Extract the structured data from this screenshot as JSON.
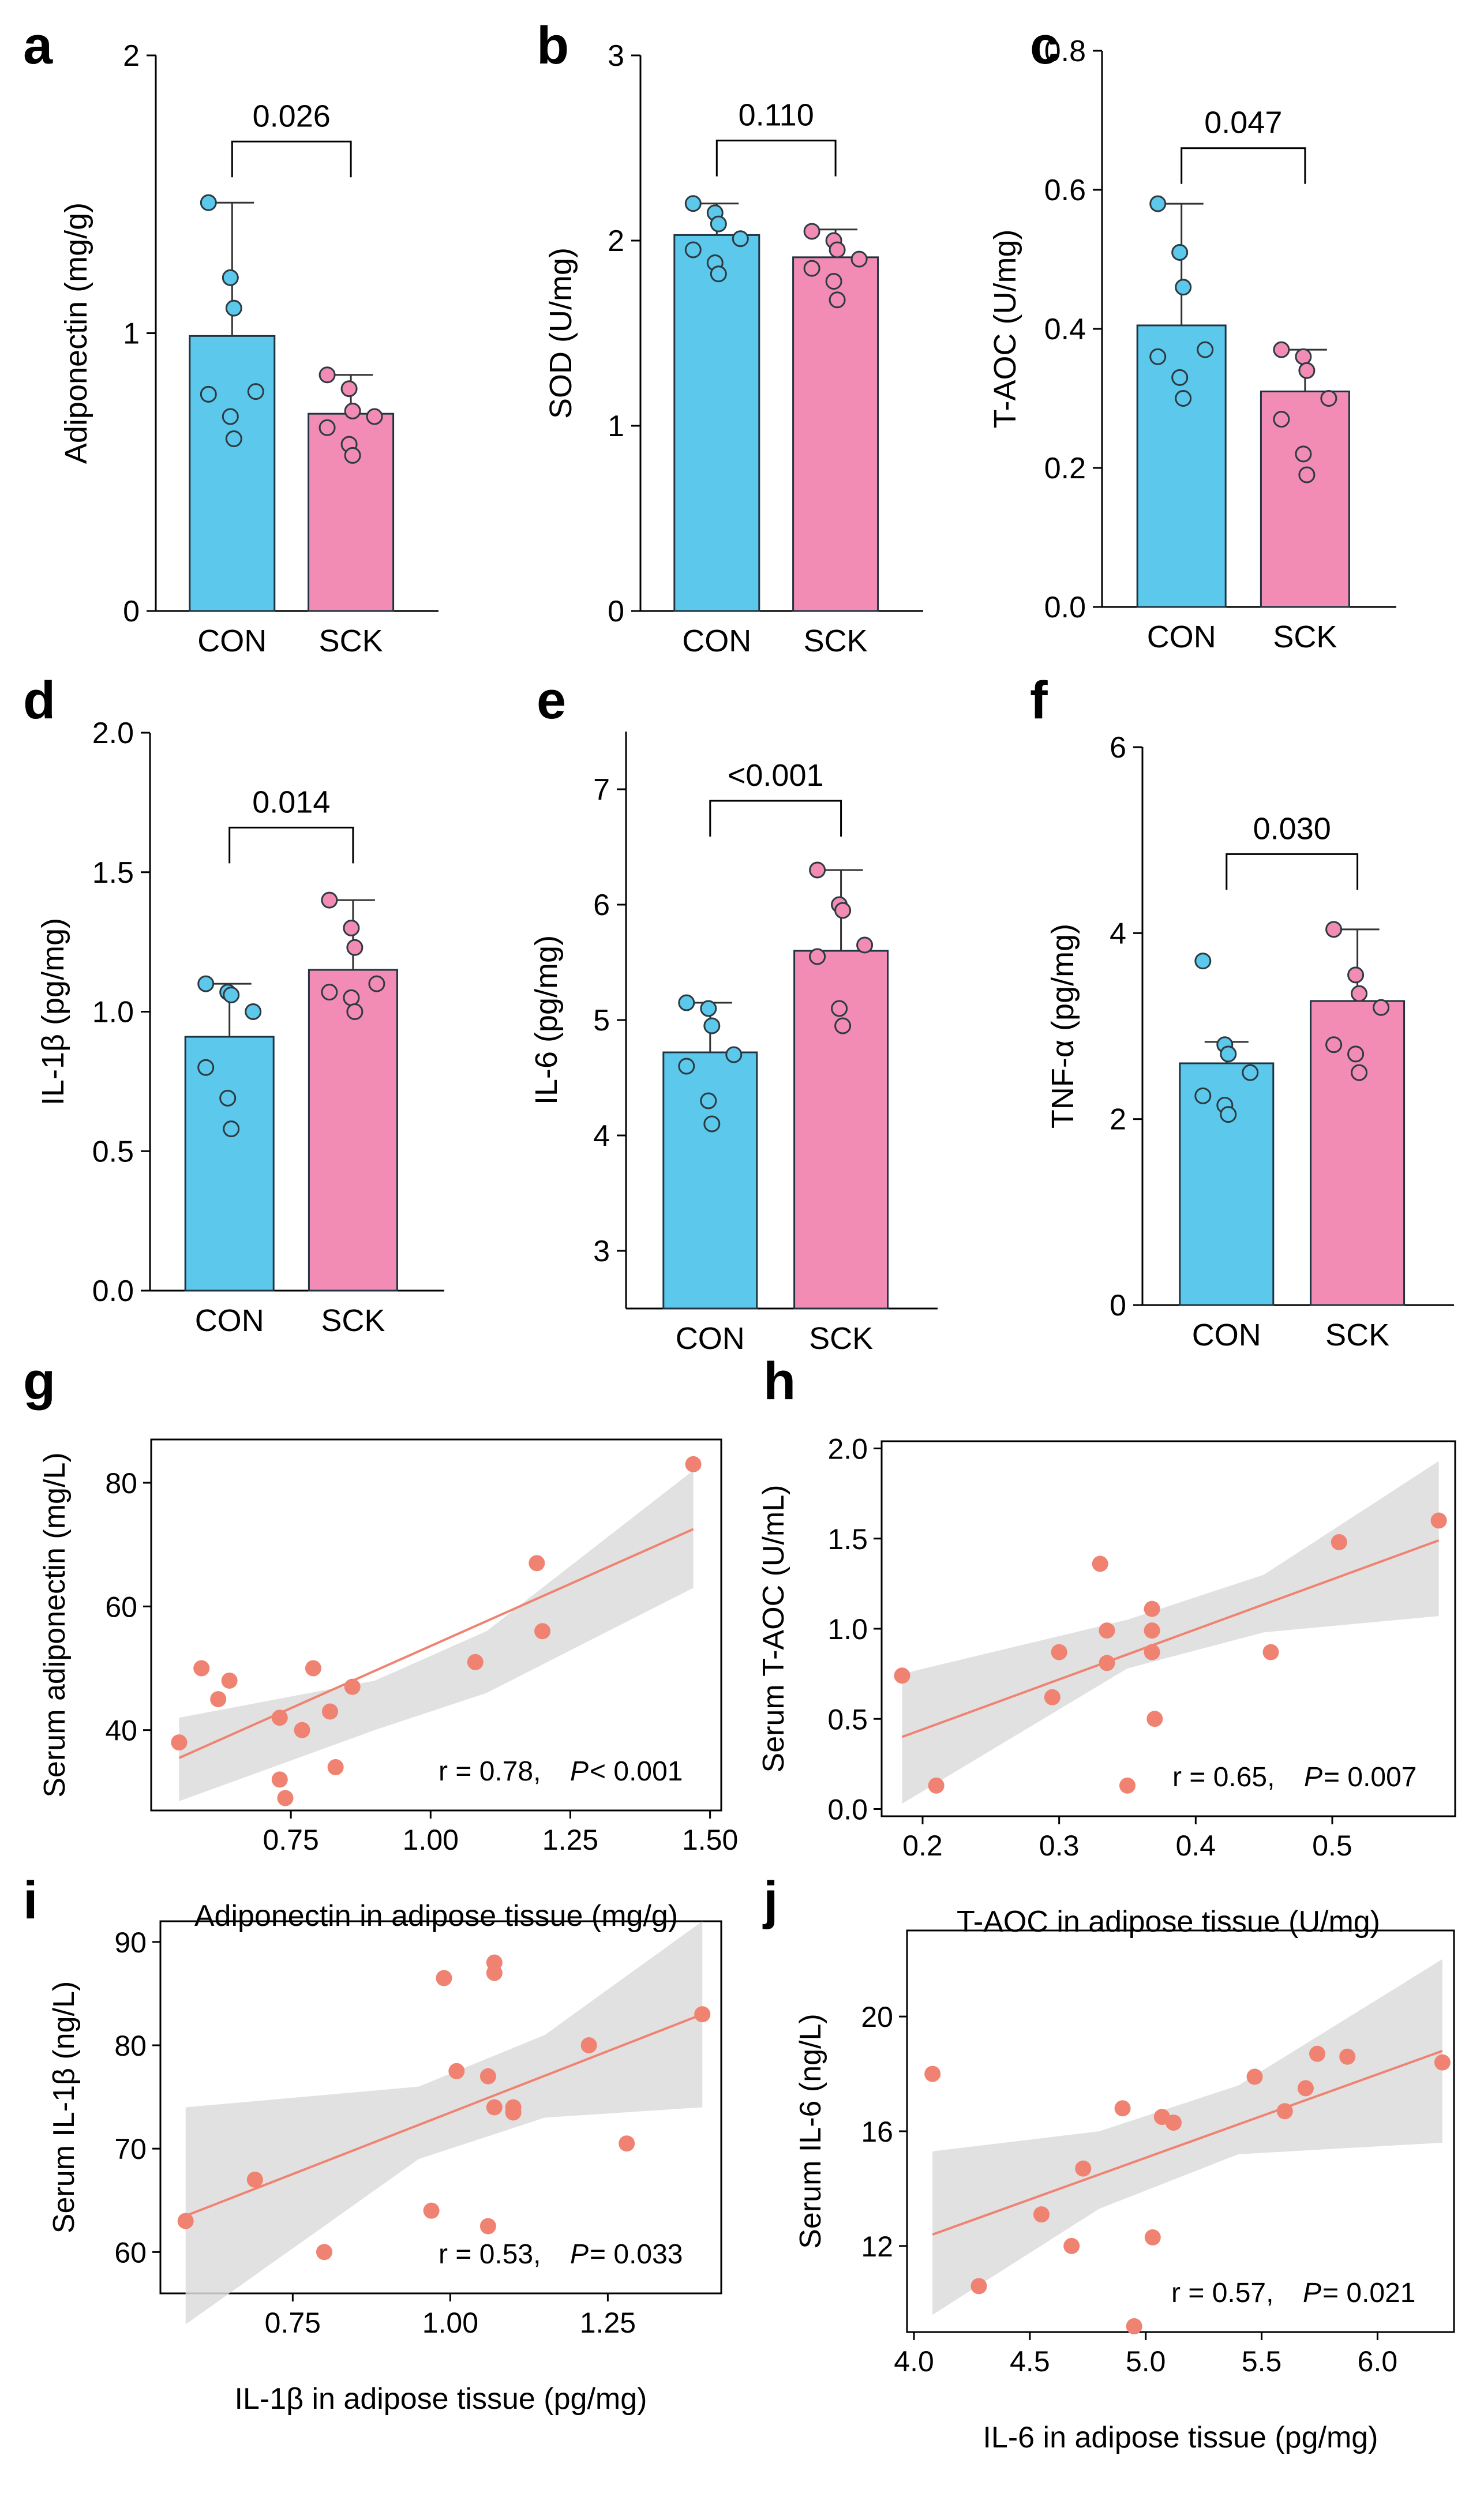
{
  "figure": {
    "description_colors": {
      "con": "#5bc8ec",
      "sck": "#f28cb4",
      "dot": "#f08272",
      "line": "#f08272",
      "band": "#dcdcdc",
      "axis": "#000000"
    }
  },
  "chart_data": [
    {
      "id": "a",
      "panel_label": "a",
      "type": "bar",
      "ylabel": "Adiponectin (mg/g)",
      "ylim": [
        0,
        2
      ],
      "yticks": [
        0,
        1,
        2
      ],
      "ytick_labels": [
        "0",
        "1",
        "2"
      ],
      "categories": [
        "CON",
        "SCK"
      ],
      "means": [
        0.99,
        0.71
      ],
      "errors": [
        1.47,
        0.85
      ],
      "points": [
        [
          1.47,
          1.2,
          1.09,
          0.79,
          0.78,
          0.7,
          0.62
        ],
        [
          0.85,
          0.8,
          0.72,
          0.7,
          0.66,
          0.6,
          0.56
        ]
      ],
      "p_label": "0.026",
      "bracket_y": 1.69
    },
    {
      "id": "b",
      "panel_label": "b",
      "type": "bar",
      "ylabel": "SOD (U/mg)",
      "ylim": [
        0,
        3
      ],
      "yticks": [
        0,
        1,
        2,
        3
      ],
      "ytick_labels": [
        "0",
        "1",
        "2",
        "3"
      ],
      "categories": [
        "CON",
        "SCK"
      ],
      "means": [
        2.03,
        1.91
      ],
      "errors": [
        2.2,
        2.06
      ],
      "points": [
        [
          2.2,
          2.15,
          2.09,
          2.01,
          1.95,
          1.88,
          1.82
        ],
        [
          2.05,
          2.0,
          1.95,
          1.9,
          1.85,
          1.78,
          1.68
        ]
      ],
      "p_label": "0.110",
      "bracket_y": 2.54
    },
    {
      "id": "c",
      "panel_label": "c",
      "type": "bar",
      "ylabel": "T-AOC (U/mg)",
      "ylim": [
        0,
        0.8
      ],
      "yticks": [
        0,
        0.2,
        0.4,
        0.6,
        0.8
      ],
      "ytick_labels": [
        "0.0",
        "0.2",
        "0.4",
        "0.6",
        "0.8"
      ],
      "categories": [
        "CON",
        "SCK"
      ],
      "means": [
        0.405,
        0.31
      ],
      "errors": [
        0.58,
        0.37
      ],
      "points": [
        [
          0.58,
          0.51,
          0.46,
          0.37,
          0.36,
          0.33,
          0.3
        ],
        [
          0.37,
          0.36,
          0.34,
          0.3,
          0.27,
          0.22,
          0.19
        ]
      ],
      "p_label": "0.047",
      "bracket_y": 0.66
    },
    {
      "id": "d",
      "panel_label": "d",
      "type": "bar",
      "ylabel": "IL-1β (pg/mg)",
      "ylim": [
        0,
        2.0
      ],
      "yticks": [
        0,
        0.5,
        1.0,
        1.5,
        2.0
      ],
      "ytick_labels": [
        "0.0",
        "0.5",
        "1.0",
        "1.5",
        "2.0"
      ],
      "categories": [
        "CON",
        "SCK"
      ],
      "means": [
        0.91,
        1.15
      ],
      "errors": [
        1.1,
        1.4
      ],
      "points": [
        [
          1.1,
          1.07,
          1.06,
          1.0,
          0.8,
          0.69,
          0.58
        ],
        [
          1.4,
          1.3,
          1.23,
          1.1,
          1.07,
          1.05,
          1.0
        ]
      ],
      "p_label": "0.014",
      "bracket_y": 1.66
    },
    {
      "id": "e",
      "panel_label": "e",
      "type": "bar",
      "ylabel": "IL-6 (pg/mg)",
      "ylim": [
        2.5,
        7.5
      ],
      "ybase": 2.5,
      "yticks": [
        3,
        4,
        5,
        6,
        7
      ],
      "ytick_labels": [
        "3",
        "4",
        "5",
        "6",
        "7"
      ],
      "categories": [
        "CON",
        "SCK"
      ],
      "means": [
        4.72,
        5.6
      ],
      "errors": [
        5.15,
        6.3
      ],
      "points": [
        [
          5.15,
          5.1,
          4.95,
          4.7,
          4.6,
          4.3,
          4.1
        ],
        [
          6.3,
          6.0,
          5.95,
          5.65,
          5.55,
          5.1,
          4.95
        ]
      ],
      "p_label": "<0.001",
      "bracket_y": 6.9
    },
    {
      "id": "f",
      "panel_label": "f",
      "type": "bar",
      "ylabel": "TNF-α (pg/mg)",
      "ylim": [
        0,
        6
      ],
      "yticks": [
        0,
        2,
        4,
        6
      ],
      "ytick_labels": [
        "0",
        "2",
        "4",
        "6"
      ],
      "categories": [
        "CON",
        "SCK"
      ],
      "means": [
        2.6,
        3.27
      ],
      "errors": [
        2.83,
        4.04
      ],
      "points": [
        [
          3.7,
          2.8,
          2.7,
          2.5,
          2.25,
          2.15,
          2.05
        ],
        [
          4.04,
          3.55,
          3.35,
          3.2,
          2.8,
          2.7,
          2.5
        ]
      ],
      "p_label": "0.030",
      "bracket_y": 4.85
    },
    {
      "id": "g",
      "panel_label": "g",
      "type": "scatter",
      "xlabel": "Adiponectin in adipose tissue (mg/g)",
      "ylabel": "Serum adiponectin (mg/L)",
      "xlim": [
        0.5,
        1.52
      ],
      "ylim": [
        27,
        87
      ],
      "xticks": [
        0.75,
        1.0,
        1.25,
        1.5
      ],
      "xtick_labels": [
        "0.75",
        "1.00",
        "1.25",
        "1.50"
      ],
      "yticks": [
        40,
        60,
        80
      ],
      "ytick_labels": [
        "40",
        "60",
        "80"
      ],
      "x": [
        0.55,
        0.59,
        0.62,
        0.64,
        0.73,
        0.73,
        0.74,
        0.77,
        0.79,
        0.82,
        0.83,
        0.86,
        1.08,
        1.19,
        1.2,
        1.47
      ],
      "y": [
        38,
        50,
        45,
        48,
        42,
        32,
        29,
        40,
        50,
        43,
        34,
        47,
        51,
        67,
        56,
        83
      ],
      "fit": [
        [
          0.55,
          35.5
        ],
        [
          1.47,
          72.5
        ]
      ],
      "band_upper": [
        [
          0.55,
          42
        ],
        [
          0.9,
          48
        ],
        [
          1.1,
          56
        ],
        [
          1.47,
          82
        ]
      ],
      "band_lower": [
        [
          0.55,
          28.5
        ],
        [
          0.9,
          40
        ],
        [
          1.1,
          46
        ],
        [
          1.47,
          63
        ]
      ],
      "r_text": "r = 0.78,",
      "p_prefix": "P",
      "p_text": " < 0.001"
    },
    {
      "id": "h",
      "panel_label": "h",
      "type": "scatter",
      "xlabel": "T-AOC in adipose tissue (U/mg)",
      "ylabel": "Serum T-AOC (U/mL)",
      "xlim": [
        0.17,
        0.59
      ],
      "ylim": [
        -0.04,
        2.04
      ],
      "xticks": [
        0.2,
        0.3,
        0.4,
        0.5
      ],
      "xtick_labels": [
        "0.2",
        "0.3",
        "0.4",
        "0.5"
      ],
      "yticks": [
        0,
        0.5,
        1.0,
        1.5,
        2.0
      ],
      "ytick_labels": [
        "0.0",
        "0.5",
        "1.0",
        "1.5",
        "2.0"
      ],
      "x": [
        0.185,
        0.21,
        0.295,
        0.3,
        0.33,
        0.335,
        0.335,
        0.35,
        0.368,
        0.368,
        0.368,
        0.37,
        0.455,
        0.505,
        0.578
      ],
      "y": [
        0.74,
        0.13,
        0.62,
        0.87,
        1.36,
        0.99,
        0.81,
        0.13,
        1.11,
        0.99,
        0.87,
        0.5,
        0.87,
        1.48,
        1.6
      ],
      "fit": [
        [
          0.185,
          0.4
        ],
        [
          0.578,
          1.49
        ]
      ],
      "band_upper": [
        [
          0.185,
          0.75
        ],
        [
          0.35,
          1.05
        ],
        [
          0.45,
          1.3
        ],
        [
          0.578,
          1.93
        ]
      ],
      "band_lower": [
        [
          0.185,
          0.03
        ],
        [
          0.35,
          0.78
        ],
        [
          0.45,
          0.98
        ],
        [
          0.578,
          1.07
        ]
      ],
      "r_text": "r = 0.65,",
      "p_prefix": "P",
      "p_text": " = 0.007"
    },
    {
      "id": "i",
      "panel_label": "i",
      "type": "scatter",
      "xlabel": "IL-1β in adipose tissue (pg/mg)",
      "ylabel": "Serum IL-1β (ng/L)",
      "xlim": [
        0.54,
        1.43
      ],
      "ylim": [
        56,
        92
      ],
      "xticks": [
        0.75,
        1.0,
        1.25
      ],
      "xtick_labels": [
        "0.75",
        "1.00",
        "1.25"
      ],
      "yticks": [
        60,
        70,
        80,
        90
      ],
      "ytick_labels": [
        "60",
        "70",
        "80",
        "90"
      ],
      "x": [
        0.58,
        0.69,
        0.8,
        0.97,
        0.99,
        1.01,
        1.06,
        1.06,
        1.07,
        1.07,
        1.07,
        1.1,
        1.1,
        1.22,
        1.28,
        1.4
      ],
      "y": [
        63,
        67,
        60,
        64,
        86.5,
        77.5,
        62.5,
        77,
        74,
        87,
        88,
        73.5,
        74,
        80,
        70.5,
        83
      ],
      "fit": [
        [
          0.58,
          63.5
        ],
        [
          1.4,
          83
        ]
      ],
      "band_upper": [
        [
          0.58,
          74
        ],
        [
          0.95,
          76
        ],
        [
          1.15,
          81
        ],
        [
          1.4,
          92
        ]
      ],
      "band_lower": [
        [
          0.58,
          53
        ],
        [
          0.95,
          69
        ],
        [
          1.15,
          73
        ],
        [
          1.4,
          74
        ]
      ],
      "r_text": "r = 0.53,",
      "p_prefix": "P",
      "p_text": " = 0.033"
    },
    {
      "id": "j",
      "panel_label": "j",
      "type": "scatter",
      "xlabel": "IL-6 in adipose tissue (pg/mg)",
      "ylabel": "Serum IL-6 (ng/L)",
      "xlim": [
        3.97,
        6.33
      ],
      "ylim": [
        9.0,
        23.0
      ],
      "xticks": [
        4.0,
        4.5,
        5.0,
        5.5,
        6.0
      ],
      "xtick_labels": [
        "4.0",
        "4.5",
        "5.0",
        "5.5",
        "6.0"
      ],
      "yticks": [
        12,
        16,
        20
      ],
      "ytick_labels": [
        "12",
        "16",
        "20"
      ],
      "x": [
        4.08,
        4.28,
        4.55,
        4.68,
        4.73,
        4.9,
        4.95,
        5.03,
        5.07,
        5.12,
        5.47,
        5.6,
        5.69,
        5.74,
        5.87,
        6.28
      ],
      "y": [
        18,
        10.6,
        13.1,
        12,
        14.7,
        16.8,
        9.2,
        12.3,
        16.5,
        16.3,
        17.9,
        16.7,
        17.5,
        18.7,
        18.6,
        18.4
      ],
      "fit": [
        [
          4.08,
          12.4
        ],
        [
          6.28,
          18.8
        ]
      ],
      "band_upper": [
        [
          4.08,
          15.3
        ],
        [
          4.8,
          16.0
        ],
        [
          5.4,
          17.6
        ],
        [
          6.28,
          22.0
        ]
      ],
      "band_lower": [
        [
          4.08,
          9.6
        ],
        [
          4.8,
          13.3
        ],
        [
          5.4,
          15.2
        ],
        [
          6.28,
          15.6
        ]
      ],
      "r_text": "r = 0.57,",
      "p_prefix": "P",
      "p_text": " = 0.021"
    }
  ]
}
